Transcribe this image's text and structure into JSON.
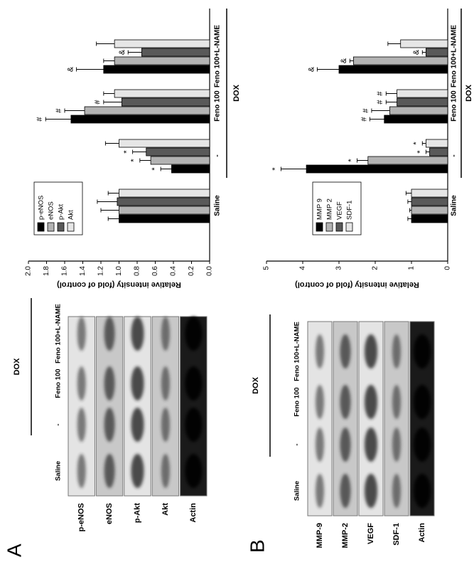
{
  "panels": [
    {
      "label": "A",
      "blot": {
        "group_label": "DOX",
        "columns": [
          "Saline",
          "-",
          "Feno 100",
          "Feno 100+L-NAME"
        ],
        "rows": [
          "p-eNOS",
          "eNOS",
          "p-Akt",
          "Akt",
          "Actin"
        ]
      }
    },
    {
      "label": "B",
      "blot": {
        "group_label": "DOX",
        "columns": [
          "Saline",
          "-",
          "Feno 100",
          "Feno 100+L-NAME"
        ],
        "rows": [
          "MMP-9",
          "MMP-2",
          "VEGF",
          "SDF-1",
          "Actin"
        ]
      }
    }
  ],
  "chart_data": [
    {
      "type": "bar",
      "ylabel": "Relative intensity (fold of control)",
      "group_label": "DOX",
      "categories": [
        "Saline",
        "-",
        "Feno 100",
        "Feno 100+L-NAME"
      ],
      "series": [
        {
          "name": "p-eNOS",
          "color": "#000000",
          "values": [
            1.0,
            0.42,
            1.53,
            1.17
          ],
          "errors": [
            0.12,
            0.12,
            0.28,
            0.3
          ],
          "annotations": [
            null,
            "*",
            "#",
            "&"
          ]
        },
        {
          "name": "eNOS",
          "color": "#b3b3b3",
          "values": [
            1.0,
            0.65,
            1.38,
            1.05
          ],
          "errors": [
            0.2,
            0.12,
            0.22,
            0.12
          ],
          "annotations": [
            null,
            "*",
            "#",
            null
          ]
        },
        {
          "name": "p-Akt",
          "color": "#595959",
          "values": [
            1.02,
            0.7,
            0.97,
            0.75
          ],
          "errors": [
            0.22,
            0.15,
            0.2,
            0.15
          ],
          "annotations": [
            null,
            "*",
            "#",
            "&"
          ]
        },
        {
          "name": "Akt",
          "color": "#e6e6e6",
          "values": [
            1.0,
            1.0,
            1.05,
            1.05
          ],
          "errors": [
            0.12,
            0.15,
            0.12,
            0.2
          ],
          "annotations": [
            null,
            null,
            null,
            null
          ]
        }
      ],
      "ylim": [
        0,
        2.0
      ],
      "yticks": [
        {
          "value": 0,
          "label": "0.0"
        },
        0.2,
        0.4,
        0.6,
        0.8,
        {
          "value": 1,
          "label": "1.0"
        },
        1.2,
        1.4,
        1.6,
        1.8,
        {
          "value": 2,
          "label": "2.0"
        }
      ],
      "legend": "top-left"
    },
    {
      "type": "bar",
      "ylabel": "Relative intensity (fold of control)",
      "group_label": "DOX",
      "categories": [
        "Saline",
        "-",
        "Feno 100",
        "Feno 100+L-NAME"
      ],
      "series": [
        {
          "name": "MMP 9",
          "color": "#000000",
          "values": [
            1.0,
            3.9,
            1.75,
            3.0
          ],
          "errors": [
            0.1,
            0.7,
            0.4,
            0.6
          ],
          "annotations": [
            null,
            "*",
            "#",
            "&"
          ]
        },
        {
          "name": "MMP 2",
          "color": "#b3b3b3",
          "values": [
            1.0,
            2.2,
            1.6,
            2.6
          ],
          "errors": [
            0.05,
            0.3,
            0.5,
            0.1
          ],
          "annotations": [
            null,
            "*",
            "#",
            "&"
          ]
        },
        {
          "name": "VEGF",
          "color": "#595959",
          "values": [
            1.0,
            0.5,
            1.4,
            0.6
          ],
          "errors": [
            0.1,
            0.1,
            0.3,
            0.1
          ],
          "annotations": [
            null,
            "*",
            "#",
            "&"
          ]
        },
        {
          "name": "SDF-1",
          "color": "#e6e6e6",
          "values": [
            1.0,
            0.6,
            1.4,
            1.3
          ],
          "errors": [
            0.15,
            0.1,
            0.3,
            0.35
          ],
          "annotations": [
            null,
            "*",
            "#",
            null
          ]
        }
      ],
      "ylim": [
        0,
        5
      ],
      "yticks": [
        0,
        1,
        2,
        3,
        4,
        5
      ],
      "legend": "top-left"
    }
  ]
}
